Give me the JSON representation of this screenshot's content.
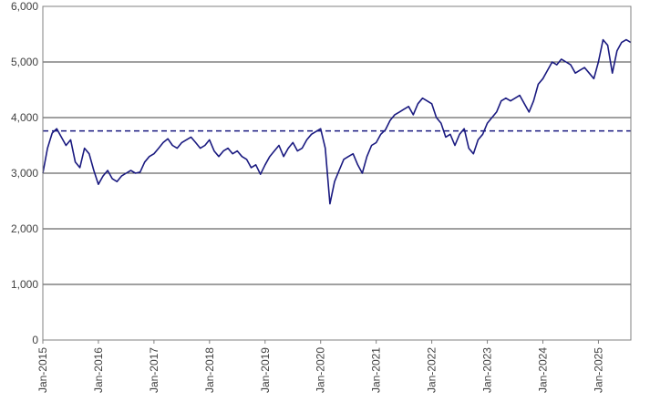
{
  "chart_data": {
    "type": "line",
    "title": "",
    "xlabel": "",
    "ylabel": "",
    "ylim": [
      0,
      6000
    ],
    "y_ticks": [
      0,
      1000,
      2000,
      3000,
      4000,
      5000,
      6000
    ],
    "y_tick_labels": [
      "0",
      "1,000",
      "2,000",
      "3,000",
      "4,000",
      "5,000",
      "6,000"
    ],
    "x_range": [
      "2015-01",
      "2025-08"
    ],
    "x_ticks": [
      "2015-01",
      "2016-01",
      "2017-01",
      "2018-01",
      "2019-01",
      "2020-01",
      "2021-01",
      "2022-01",
      "2023-01",
      "2024-01",
      "2025-01"
    ],
    "x_tick_labels": [
      "Jan-2015",
      "Jan-2016",
      "Jan-2017",
      "Jan-2018",
      "Jan-2019",
      "Jan-2020",
      "Jan-2021",
      "Jan-2022",
      "Jan-2023",
      "Jan-2024",
      "Jan-2025"
    ],
    "grid": "horizontal",
    "reference_line": {
      "y": 3760,
      "style": "dashed"
    },
    "series": [
      {
        "color": "#1a1a80",
        "x": [
          "2015-01",
          "2015-02",
          "2015-03",
          "2015-04",
          "2015-05",
          "2015-06",
          "2015-07",
          "2015-08",
          "2015-09",
          "2015-10",
          "2015-11",
          "2015-12",
          "2016-01",
          "2016-02",
          "2016-03",
          "2016-04",
          "2016-05",
          "2016-06",
          "2016-07",
          "2016-08",
          "2016-09",
          "2016-10",
          "2016-11",
          "2016-12",
          "2017-01",
          "2017-02",
          "2017-03",
          "2017-04",
          "2017-05",
          "2017-06",
          "2017-07",
          "2017-08",
          "2017-09",
          "2017-10",
          "2017-11",
          "2017-12",
          "2018-01",
          "2018-02",
          "2018-03",
          "2018-04",
          "2018-05",
          "2018-06",
          "2018-07",
          "2018-08",
          "2018-09",
          "2018-10",
          "2018-11",
          "2018-12",
          "2019-01",
          "2019-02",
          "2019-03",
          "2019-04",
          "2019-05",
          "2019-06",
          "2019-07",
          "2019-08",
          "2019-09",
          "2019-10",
          "2019-11",
          "2019-12",
          "2020-01",
          "2020-02",
          "2020-03",
          "2020-04",
          "2020-05",
          "2020-06",
          "2020-07",
          "2020-08",
          "2020-09",
          "2020-10",
          "2020-11",
          "2020-12",
          "2021-01",
          "2021-02",
          "2021-03",
          "2021-04",
          "2021-05",
          "2021-06",
          "2021-07",
          "2021-08",
          "2021-09",
          "2021-10",
          "2021-11",
          "2021-12",
          "2022-01",
          "2022-02",
          "2022-03",
          "2022-04",
          "2022-05",
          "2022-06",
          "2022-07",
          "2022-08",
          "2022-09",
          "2022-10",
          "2022-11",
          "2022-12",
          "2023-01",
          "2023-02",
          "2023-03",
          "2023-04",
          "2023-05",
          "2023-06",
          "2023-07",
          "2023-08",
          "2023-09",
          "2023-10",
          "2023-11",
          "2023-12",
          "2024-01",
          "2024-02",
          "2024-03",
          "2024-04",
          "2024-05",
          "2024-06",
          "2024-07",
          "2024-08",
          "2024-09",
          "2024-10",
          "2024-11",
          "2024-12",
          "2025-01",
          "2025-02",
          "2025-03",
          "2025-04",
          "2025-05",
          "2025-06",
          "2025-07",
          "2025-08"
        ],
        "values": [
          3000,
          3450,
          3720,
          3800,
          3650,
          3500,
          3600,
          3200,
          3100,
          3450,
          3350,
          3050,
          2800,
          2950,
          3050,
          2900,
          2850,
          2950,
          3000,
          3050,
          3000,
          3020,
          3200,
          3300,
          3350,
          3450,
          3550,
          3620,
          3500,
          3450,
          3550,
          3600,
          3650,
          3550,
          3450,
          3500,
          3600,
          3400,
          3300,
          3400,
          3450,
          3350,
          3400,
          3300,
          3250,
          3100,
          3150,
          2980,
          3150,
          3300,
          3400,
          3500,
          3300,
          3450,
          3550,
          3400,
          3450,
          3600,
          3700,
          3750,
          3800,
          3450,
          2450,
          2850,
          3050,
          3250,
          3300,
          3350,
          3150,
          3000,
          3300,
          3500,
          3550,
          3700,
          3780,
          3950,
          4050,
          4100,
          4150,
          4200,
          4050,
          4250,
          4350,
          4300,
          4250,
          4000,
          3900,
          3650,
          3700,
          3500,
          3700,
          3800,
          3450,
          3350,
          3600,
          3700,
          3900,
          4000,
          4100,
          4300,
          4350,
          4300,
          4350,
          4400,
          4250,
          4100,
          4300,
          4600,
          4700,
          4850,
          5000,
          4950,
          5050,
          5000,
          4950,
          4800,
          4850,
          4900,
          4800,
          4700,
          5000,
          5400,
          5300,
          4800,
          5200,
          5350,
          5400,
          5350
        ]
      }
    ]
  }
}
